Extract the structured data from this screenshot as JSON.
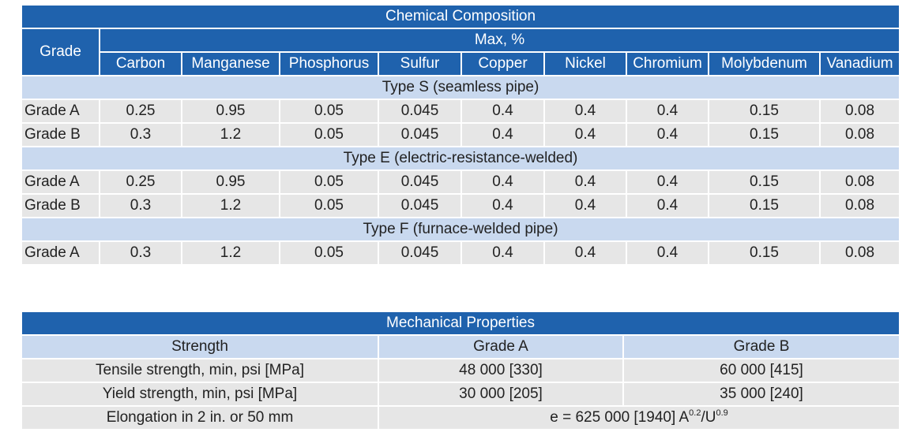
{
  "chemical": {
    "title": "Chemical Composition",
    "grade_header": "Grade",
    "max_header": "Max, %",
    "columns": [
      "Carbon",
      "Manganese",
      "Phosphorus",
      "Sulfur",
      "Copper",
      "Nickel",
      "Chromium",
      "Molybdenum",
      "Vanadium"
    ],
    "sections": [
      {
        "label": "Type S (seamless pipe)",
        "rows": [
          {
            "grade": "Grade A",
            "values": [
              "0.25",
              "0.95",
              "0.05",
              "0.045",
              "0.4",
              "0.4",
              "0.4",
              "0.15",
              "0.08"
            ]
          },
          {
            "grade": "Grade B",
            "values": [
              "0.3",
              "1.2",
              "0.05",
              "0.045",
              "0.4",
              "0.4",
              "0.4",
              "0.15",
              "0.08"
            ]
          }
        ]
      },
      {
        "label": "Type E (electric-resistance-welded)",
        "rows": [
          {
            "grade": "Grade A",
            "values": [
              "0.25",
              "0.95",
              "0.05",
              "0.045",
              "0.4",
              "0.4",
              "0.4",
              "0.15",
              "0.08"
            ]
          },
          {
            "grade": "Grade B",
            "values": [
              "0.3",
              "1.2",
              "0.05",
              "0.045",
              "0.4",
              "0.4",
              "0.4",
              "0.15",
              "0.08"
            ]
          }
        ]
      },
      {
        "label": "Type F (furnace-welded pipe)",
        "rows": [
          {
            "grade": "Grade A",
            "values": [
              "0.3",
              "1.2",
              "0.05",
              "0.045",
              "0.4",
              "0.4",
              "0.4",
              "0.15",
              "0.08"
            ]
          }
        ]
      }
    ]
  },
  "mechanical": {
    "title": "Mechanical Properties",
    "headers": [
      "Strength",
      "Grade A",
      "Grade B"
    ],
    "rows": [
      {
        "label": "Tensile strength, min, psi [MPa]",
        "a": "48 000 [330]",
        "b": "60 000 [415]"
      },
      {
        "label": "Yield strength, min, psi [MPa]",
        "a": "30 000 [205]",
        "b": "35 000 [240]"
      }
    ],
    "elongation": {
      "label": "Elongation in 2 in. or 50 mm",
      "formula_base": "e = 625 000 [1940] A",
      "exp_a": "0.2",
      "divider": "/U",
      "exp_u": "0.9"
    }
  },
  "colors": {
    "header": "#1f62ad",
    "band": "#c9d9ef",
    "row": "#e6e6e6"
  }
}
